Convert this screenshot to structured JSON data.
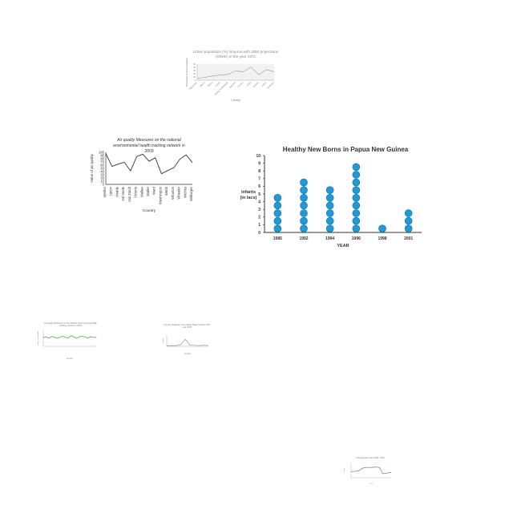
{
  "chart_data": [
    {
      "type": "line",
      "title": "Urban population (%) long-run with 2050 projections (OWID) in the year 1972",
      "xlabel": "Country",
      "ylabel": "Percentage of urban population",
      "categories": [
        "Afghanistan",
        "Albania",
        "Algeria",
        "Angola",
        "Antigua and Barbuda",
        "Argentina",
        "Armenia",
        "Aruba",
        "Australia",
        "Austria",
        "Azerbaijan"
      ],
      "values": [
        5,
        9,
        13,
        16,
        18,
        29,
        26,
        41,
        17,
        33,
        26
      ],
      "ylim": [
        0,
        50
      ],
      "yticks": [
        "50",
        "40",
        "30",
        "20",
        "10",
        "0"
      ],
      "grid": true
    },
    {
      "type": "line",
      "title": "Air quality Measures on the national environmental health tracking network in 2009",
      "xlabel": "Country",
      "ylabel": "Value of air quality",
      "categories": [
        "Upshur",
        "Upton",
        "Uvalde",
        "Val Verde",
        "Van Zandt",
        "Victoria",
        "Walker",
        "Waller",
        "Ward",
        "Washington",
        "Webb",
        "Wharton",
        "Wheeler",
        "Wichita",
        "Wilbarger"
      ],
      "values": [
        96,
        56,
        63,
        69,
        42,
        87,
        94,
        72,
        83,
        33,
        43,
        52,
        79,
        92,
        68
      ],
      "ylim": [
        0,
        100
      ],
      "yticks": [
        "100",
        "90",
        "80",
        "70",
        "60",
        "50",
        "40",
        "30",
        "20",
        "10",
        "0"
      ],
      "grid": false
    },
    {
      "type": "scatter",
      "title": "Healthy New Borns in Papua New Guinea",
      "xlabel": "YEAR",
      "ylabel_lines": [
        "infants",
        "(in lacs)"
      ],
      "categories": [
        "1985",
        "1992",
        "1994",
        "1996",
        "1998",
        "2001"
      ],
      "values": [
        5,
        7,
        6,
        9,
        1,
        3
      ],
      "ylim": [
        0,
        10
      ],
      "yticks": [
        "0",
        "1",
        "2",
        "3",
        "4",
        "5",
        "6",
        "7",
        "8",
        "9",
        "10"
      ],
      "dot_color": "#1f9ad6",
      "dot_edge": "#0b6fa3"
    },
    {
      "type": "line",
      "title": "Air quality Measures on the national environmental health tracking network in 2009",
      "xlabel": "Country",
      "ylabel": "Value of air quality",
      "values": [
        54,
        58,
        52,
        61,
        56,
        50,
        57,
        63,
        55,
        52,
        66,
        58,
        49,
        60,
        63,
        57,
        52,
        59,
        55,
        56
      ],
      "ylim": [
        0,
        100
      ],
      "line_color": "#4fae3f"
    },
    {
      "type": "line",
      "title": "Country Statistics / Key Health Stats (Years) in the year 2018",
      "xlabel": "Country",
      "ylabel": "Value",
      "values": [
        5,
        7,
        6,
        12,
        62,
        10,
        8,
        7,
        9,
        6
      ],
      "ylim": [
        0,
        100
      ],
      "line_color": "#888888"
    },
    {
      "type": "line",
      "title": "Housing price index (2010 = 100)",
      "xlabel": "Year",
      "ylabel": "Index",
      "values": [
        42,
        44,
        46,
        52,
        66,
        70,
        72,
        71,
        73,
        74,
        70,
        30,
        31,
        34,
        36
      ],
      "ylim": [
        0,
        100
      ],
      "line_color": "#6c6fd8"
    }
  ]
}
